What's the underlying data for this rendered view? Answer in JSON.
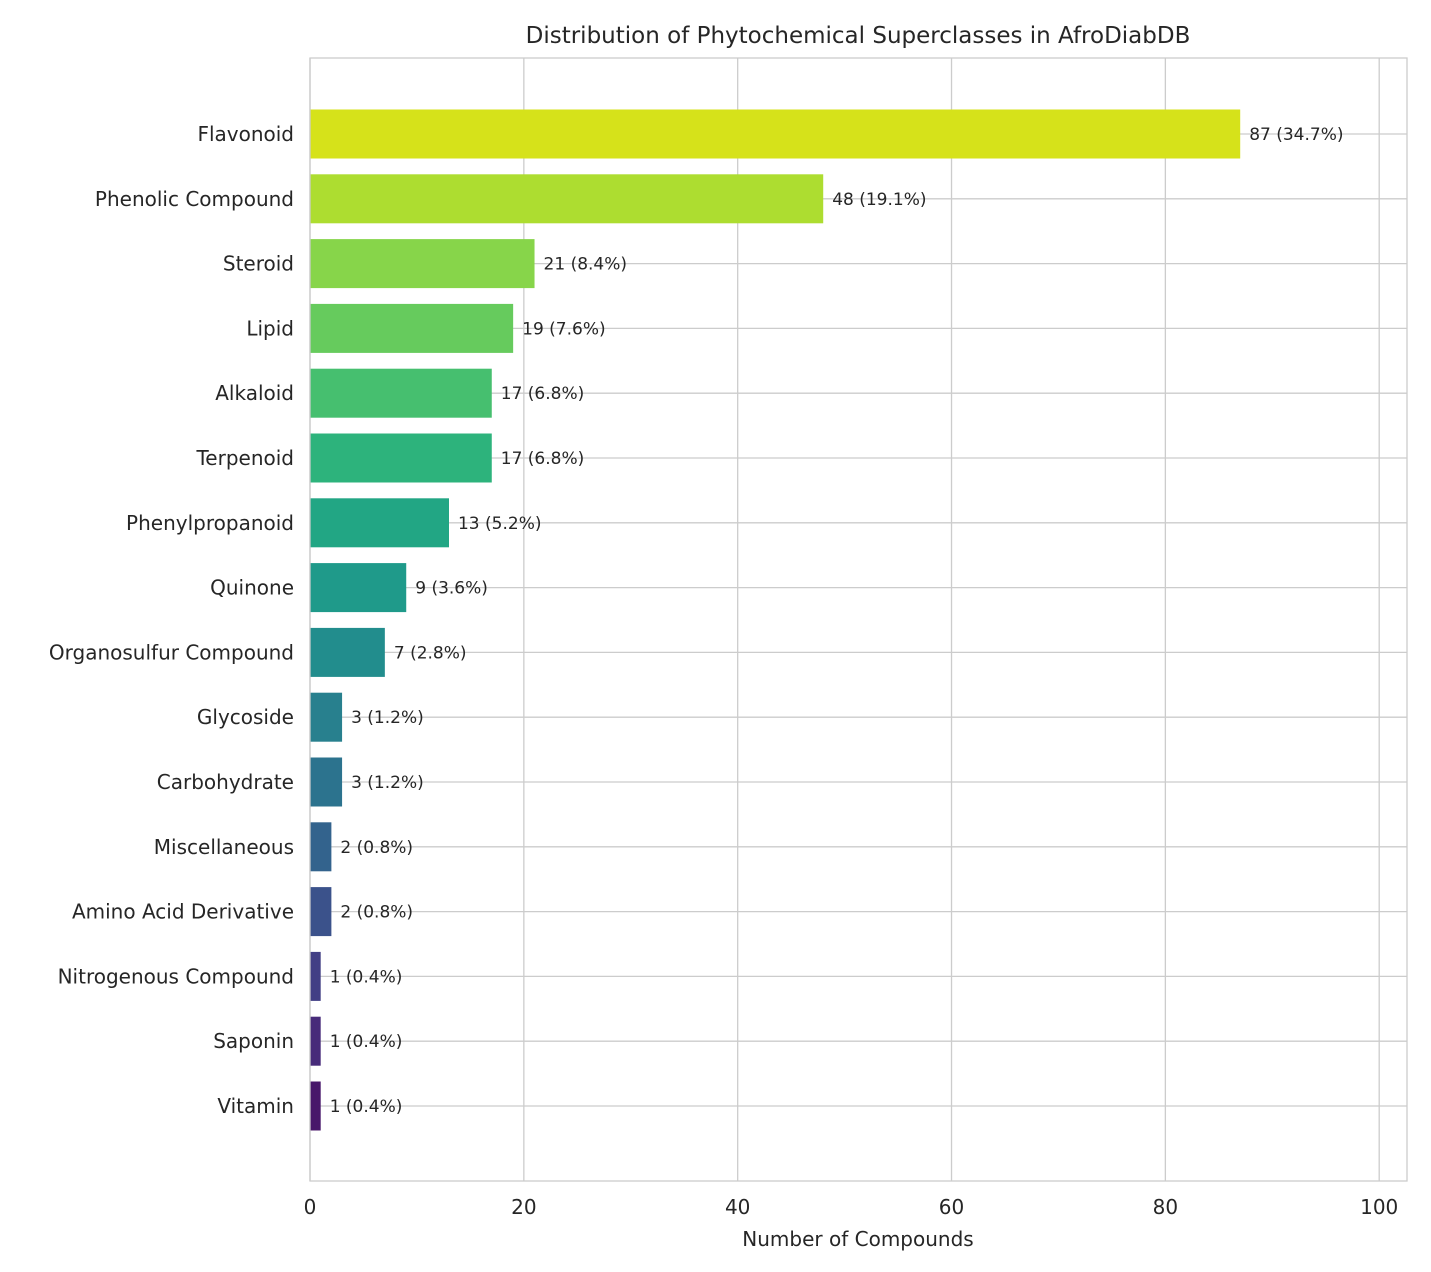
{
  "chart_data": {
    "type": "bar",
    "orientation": "horizontal",
    "title": "Distribution of Phytochemical Superclasses in AfroDiabDB",
    "xlabel": "Number of Compounds",
    "ylabel": "",
    "xlim": [
      0,
      102.6
    ],
    "xticks": [
      0,
      20,
      40,
      60,
      80,
      100
    ],
    "grid": true,
    "categories": [
      "Flavonoid",
      "Phenolic Compound",
      "Steroid",
      "Lipid",
      "Alkaloid",
      "Terpenoid",
      "Phenylpropanoid",
      "Quinone",
      "Organosulfur Compound",
      "Glycoside",
      "Carbohydrate",
      "Miscellaneous",
      "Amino Acid Derivative",
      "Nitrogenous Compound",
      "Saponin",
      "Vitamin"
    ],
    "values": [
      87,
      48,
      21,
      19,
      17,
      17,
      13,
      9,
      7,
      3,
      3,
      2,
      2,
      1,
      1,
      1
    ],
    "data_labels": [
      "87 (34.7%)",
      "48 (19.1%)",
      "21 (8.4%)",
      "19 (7.6%)",
      "17 (6.8%)",
      "17 (6.8%)",
      "13 (5.2%)",
      "9 (3.6%)",
      "7 (2.8%)",
      "3 (1.2%)",
      "3 (1.2%)",
      "2 (0.8%)",
      "2 (0.8%)",
      "1 (0.4%)",
      "1 (0.4%)",
      "1 (0.4%)"
    ],
    "colors": [
      "#d6e21a",
      "#addd30",
      "#87d54a",
      "#66cb5d",
      "#46bf6f",
      "#2db37c",
      "#22a684",
      "#1f9a8a",
      "#228d8d",
      "#28808e",
      "#2c738e",
      "#33638d",
      "#3b528b",
      "#423f85",
      "#472b7a",
      "#48176a"
    ]
  }
}
